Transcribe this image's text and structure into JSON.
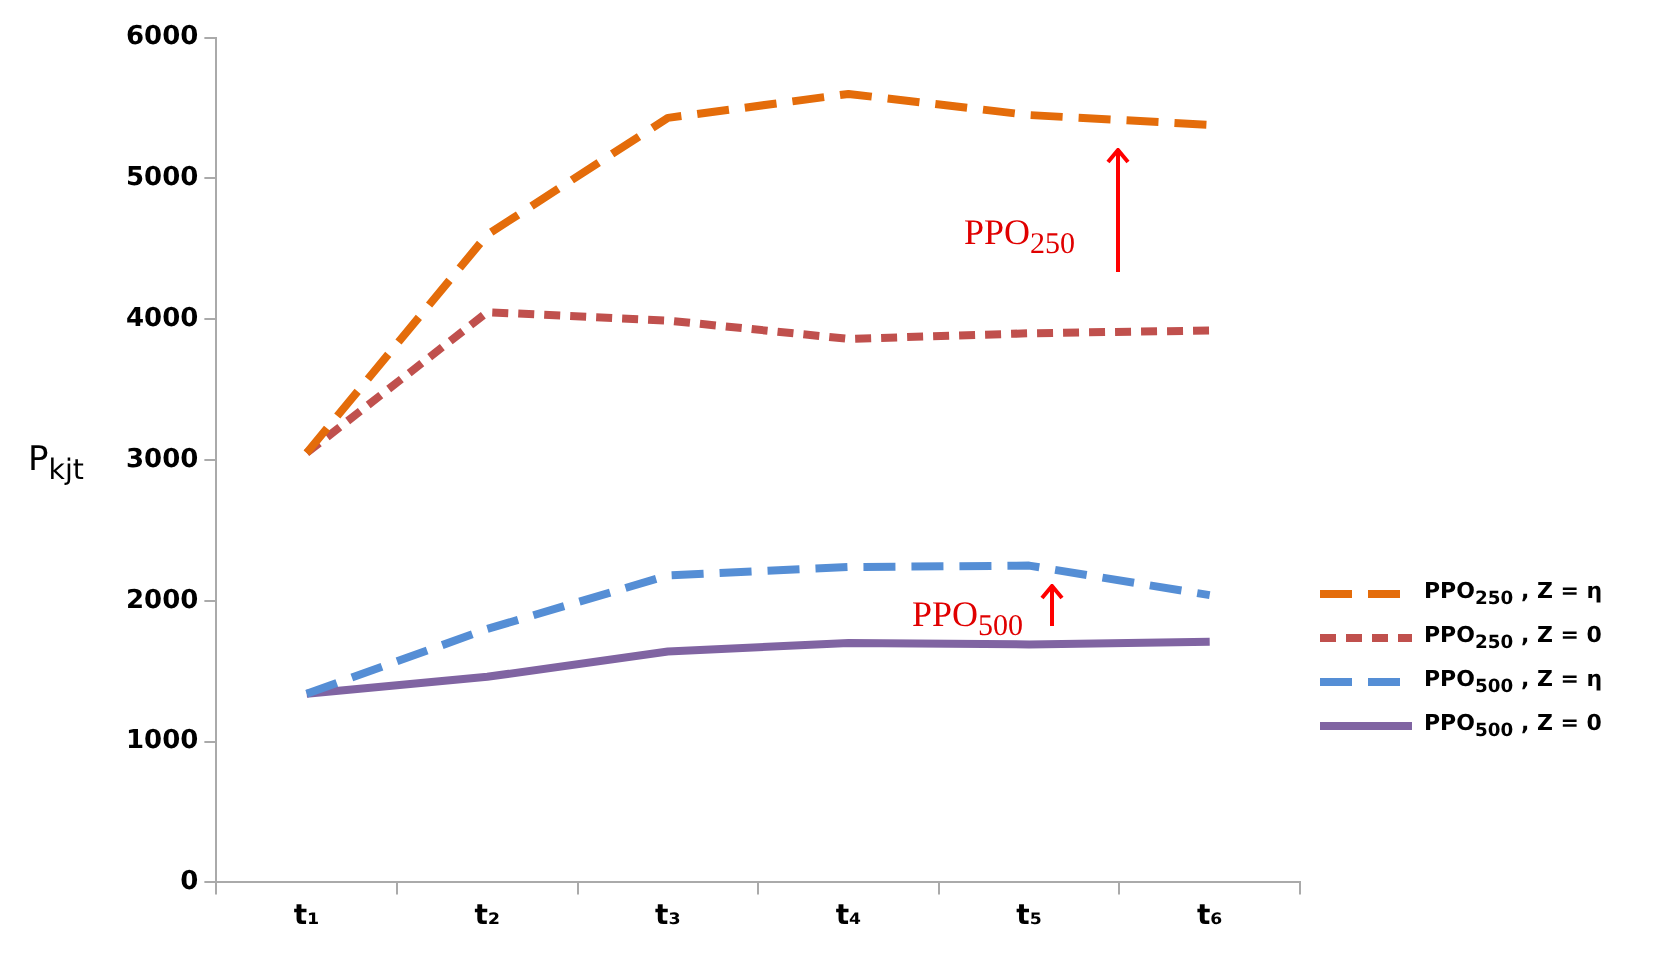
{
  "chart_data": {
    "type": "line",
    "ylabel": "P$_{kjt}$",
    "categories": [
      "t₁",
      "t₂",
      "t₃",
      "t₄",
      "t₅",
      "t₆"
    ],
    "ylim": [
      0,
      6000
    ],
    "yticks": [
      0,
      1000,
      2000,
      3000,
      4000,
      5000,
      6000
    ],
    "grid": false,
    "legend": "right",
    "marker": "none",
    "series": [
      {
        "name": "PPO$_{250}$ , Z = η",
        "color": "#e46c0a",
        "line_style": "dashed",
        "values": [
          3050,
          4600,
          5430,
          5600,
          5450,
          5380
        ]
      },
      {
        "name": "PPO$_{250}$ , Z = 0",
        "color": "#c0504d",
        "line_style": "dotted",
        "values": [
          3050,
          4050,
          3990,
          3860,
          3900,
          3920
        ]
      },
      {
        "name": "PPO$_{500}$ , Z = η",
        "color": "#558ed5",
        "line_style": "dashed",
        "values": [
          1340,
          1800,
          2180,
          2240,
          2250,
          2040
        ]
      },
      {
        "name": "PPO$_{500}$ , Z = 0",
        "color": "#8064a2",
        "line_style": "solid",
        "values": [
          1340,
          1460,
          1640,
          1700,
          1690,
          1710
        ]
      }
    ],
    "annotations": [
      "PPO$_{250}$",
      "PPO$_{500}$"
    ]
  }
}
